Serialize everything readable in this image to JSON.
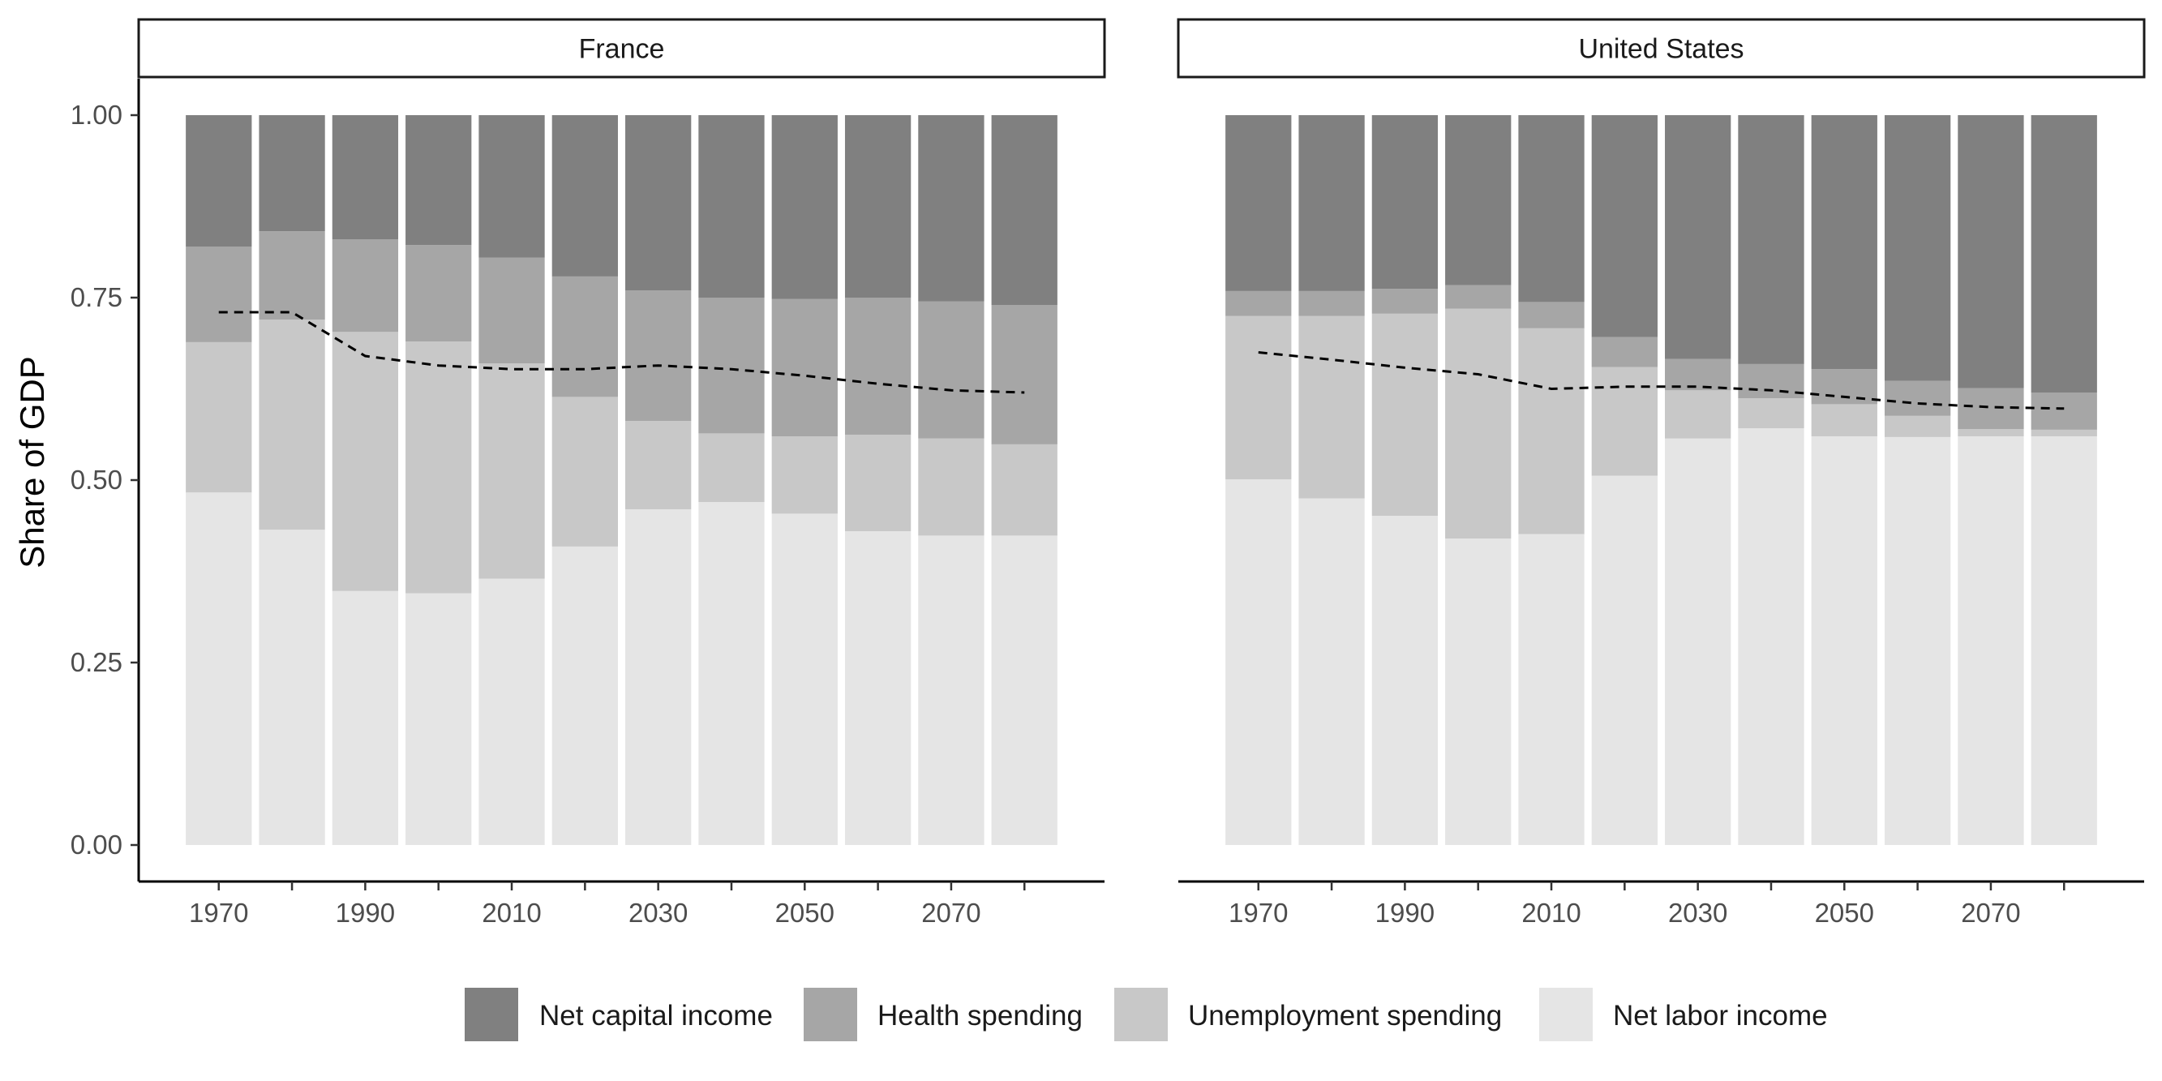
{
  "chart_data": {
    "type": "bar",
    "stacked": true,
    "normalized": true,
    "ylabel": "Share of GDP",
    "xlabel": "",
    "ylim": [
      0,
      1
    ],
    "y_ticks": [
      "0.00",
      "0.25",
      "0.50",
      "0.75",
      "1.00"
    ],
    "x_ticks": [
      "1970",
      "1990",
      "2010",
      "2030",
      "2050",
      "2070"
    ],
    "grid": false,
    "legend_position": "bottom",
    "categories": [
      1970,
      1980,
      1990,
      2000,
      2010,
      2020,
      2030,
      2040,
      2050,
      2060,
      2070,
      2080
    ],
    "series_order_top_to_bottom": [
      "Net capital income",
      "Health spending",
      "Unemployment spending",
      "Net labor income"
    ],
    "colors": {
      "Net capital income": "#808080",
      "Health spending": "#a6a6a6",
      "Unemployment spending": "#c8c8c8",
      "Net labor income": "#e5e5e5",
      "line": "#000000"
    },
    "panels": [
      {
        "title": "France",
        "series": [
          {
            "name": "Net labor income",
            "values": [
              0.483,
              0.432,
              0.348,
              0.345,
              0.365,
              0.409,
              0.46,
              0.47,
              0.454,
              0.43,
              0.424,
              0.424
            ]
          },
          {
            "name": "Unemployment spending",
            "values": [
              0.206,
              0.288,
              0.355,
              0.345,
              0.295,
              0.205,
              0.121,
              0.094,
              0.106,
              0.132,
              0.133,
              0.125
            ]
          },
          {
            "name": "Health spending",
            "values": [
              0.131,
              0.121,
              0.127,
              0.132,
              0.145,
              0.165,
              0.179,
              0.186,
              0.188,
              0.188,
              0.188,
              0.191
            ]
          },
          {
            "name": "Net capital income",
            "values": [
              0.18,
              0.159,
              0.17,
              0.178,
              0.195,
              0.221,
              0.24,
              0.25,
              0.252,
              0.25,
              0.255,
              0.26
            ]
          }
        ],
        "line_values": [
          0.73,
          0.73,
          0.67,
          0.657,
          0.652,
          0.652,
          0.657,
          0.652,
          0.643,
          0.632,
          0.623,
          0.62
        ]
      },
      {
        "title": "United States",
        "series": [
          {
            "name": "Net labor income",
            "values": [
              0.501,
              0.475,
              0.451,
              0.42,
              0.426,
              0.506,
              0.557,
              0.571,
              0.56,
              0.559,
              0.56,
              0.56
            ]
          },
          {
            "name": "Unemployment spending",
            "values": [
              0.224,
              0.25,
              0.277,
              0.315,
              0.282,
              0.149,
              0.066,
              0.041,
              0.044,
              0.029,
              0.01,
              0.009
            ]
          },
          {
            "name": "Health spending",
            "values": [
              0.034,
              0.034,
              0.034,
              0.032,
              0.036,
              0.041,
              0.043,
              0.047,
              0.048,
              0.048,
              0.056,
              0.051
            ]
          },
          {
            "name": "Net capital income",
            "values": [
              0.241,
              0.241,
              0.238,
              0.233,
              0.256,
              0.304,
              0.334,
              0.341,
              0.348,
              0.364,
              0.374,
              0.38
            ]
          }
        ],
        "line_values": [
          0.675,
          0.665,
          0.654,
          0.645,
          0.625,
          0.628,
          0.628,
          0.623,
          0.614,
          0.605,
          0.6,
          0.598
        ]
      }
    ],
    "legend": [
      "Net capital income",
      "Health spending",
      "Unemployment spending",
      "Net labor income"
    ]
  }
}
